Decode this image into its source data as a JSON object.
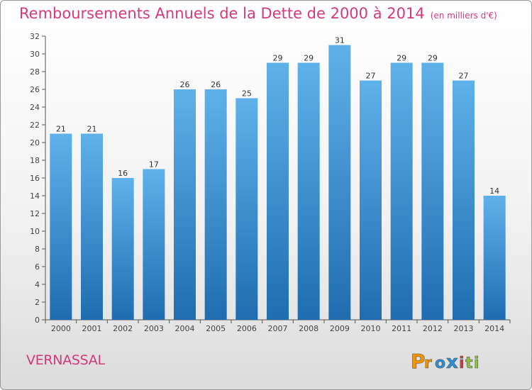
{
  "chart_data": {
    "type": "bar",
    "title": "Remboursements Annuels de la Dette de 2000 à 2014",
    "unit": "(en milliers d'€)",
    "categories": [
      "2000",
      "2001",
      "2002",
      "2003",
      "2004",
      "2005",
      "2006",
      "2007",
      "2008",
      "2009",
      "2010",
      "2011",
      "2012",
      "2013",
      "2014"
    ],
    "values": [
      21,
      21,
      16,
      17,
      26,
      26,
      25,
      29,
      29,
      31,
      27,
      29,
      29,
      27,
      14
    ],
    "ylim": [
      0,
      32
    ],
    "yticks": [
      0,
      2,
      4,
      6,
      8,
      10,
      12,
      14,
      16,
      18,
      20,
      22,
      24,
      26,
      28,
      30,
      32
    ],
    "grid": false,
    "xlabel": "",
    "ylabel": "",
    "colors": {
      "bar_top": "#5fb1ea",
      "bar_bottom": "#1f6db0"
    }
  },
  "commune": "VERNASSAL",
  "logo": {
    "text": "Proxiti",
    "letters": [
      "P",
      "r",
      "o",
      "x",
      "i",
      "t",
      "i"
    ],
    "colors": [
      "#f29400",
      "#f29400",
      "#2a8fd6",
      "#2a8fd6",
      "#e3342f",
      "#8cc63f",
      "#8cc63f"
    ]
  },
  "colors": {
    "title": "#d43a7a",
    "axis": "#555555"
  }
}
